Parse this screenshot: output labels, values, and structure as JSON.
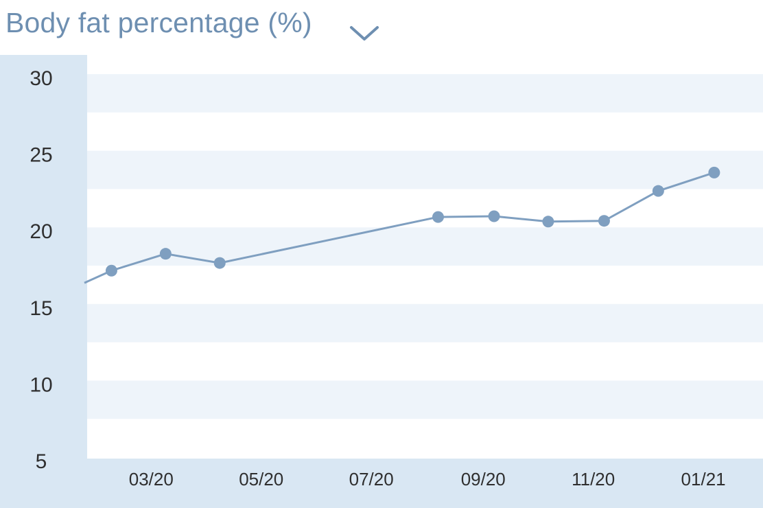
{
  "header": {
    "title": "Body fat percentage (%)",
    "dropdown_icon": "chevron-down-icon"
  },
  "colors": {
    "title": "#6e8fb1",
    "line": "#7f9fc0",
    "marker": "#7f9fc0",
    "band": "#eef4fa",
    "axis_panel": "#d9e7f3"
  },
  "chart_data": {
    "type": "line",
    "title": "Body fat percentage (%)",
    "xlabel": "",
    "ylabel": "",
    "ylim": [
      5,
      30
    ],
    "yticks": [
      30,
      25,
      20,
      15,
      10,
      5
    ],
    "xticks": [
      "03/20",
      "05/20",
      "07/20",
      "09/20",
      "11/20",
      "01/21"
    ],
    "xlim": [
      "2020-01-24",
      "2021-01-31"
    ],
    "x": [
      "2020-01-24",
      "2020-02-08",
      "2020-03-09",
      "2020-04-08",
      "2020-08-07",
      "2020-09-07",
      "2020-10-07",
      "2020-11-07",
      "2020-12-07",
      "2021-01-07"
    ],
    "values": [
      16.6,
      17.4,
      18.5,
      17.9,
      20.9,
      20.95,
      20.6,
      20.65,
      22.6,
      23.8
    ],
    "markers": [
      false,
      true,
      true,
      true,
      true,
      true,
      true,
      true,
      true,
      true
    ],
    "grid": "horizontal-bands",
    "legend": "none"
  }
}
